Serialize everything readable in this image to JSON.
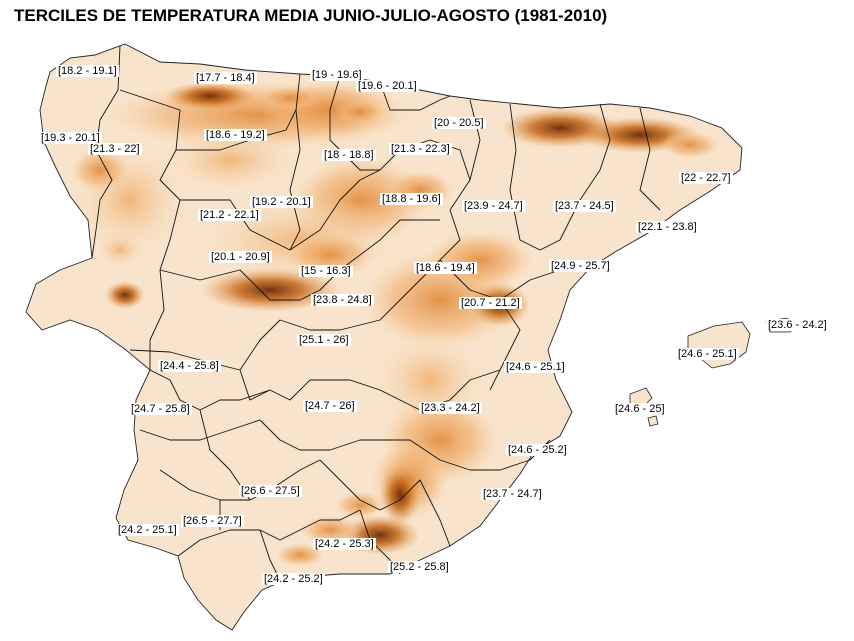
{
  "title": "TERCILES DE TEMPERATURA MEDIA JUNIO-JULIO-AGOSTO (1981-2010)",
  "colors": {
    "background": "#ffffff",
    "land_light": "#f8e4cc",
    "land_mid": "#f0b878",
    "land_warm": "#e69848",
    "land_hot": "#b0500c",
    "land_peak": "#5a2004",
    "borders": "#111111"
  },
  "regions": [
    {
      "id": "galicia-west",
      "label": "[18.2 - 19.1]"
    },
    {
      "id": "cantabria",
      "label": "[17.7 - 18.4]"
    },
    {
      "id": "bizkaia",
      "label": "[19 - 19.6]"
    },
    {
      "id": "gipuzkoa",
      "label": "[19.6 - 20.1]"
    },
    {
      "id": "galicia-coast",
      "label": "[19.3 - 20.1]"
    },
    {
      "id": "galicia-interior",
      "label": "[21.3 - 22]"
    },
    {
      "id": "burgos-leon",
      "label": "[18.6 - 19.2]"
    },
    {
      "id": "navarra",
      "label": "[20 - 20.5]"
    },
    {
      "id": "la-rioja",
      "label": "[21.3 - 22.3]"
    },
    {
      "id": "soria-burgos",
      "label": "[18 - 18.8]"
    },
    {
      "id": "girona",
      "label": "[22 - 22.7]"
    },
    {
      "id": "valladolid",
      "label": "[19.2 - 20.1]"
    },
    {
      "id": "soria",
      "label": "[18.8 - 19.6]"
    },
    {
      "id": "zaragoza",
      "label": "[23.9 - 24.7]"
    },
    {
      "id": "lleida",
      "label": "[23.7 - 24.5]"
    },
    {
      "id": "zamora",
      "label": "[21.2 - 22.1]"
    },
    {
      "id": "barcelona-tarragona",
      "label": "[22.1 - 23.8]"
    },
    {
      "id": "salamanca",
      "label": "[20.1 - 20.9]"
    },
    {
      "id": "avila-segovia",
      "label": "[15 - 16.3]"
    },
    {
      "id": "teruel",
      "label": "[18.6 - 19.4]"
    },
    {
      "id": "castellon",
      "label": "[24.9 - 25.7]"
    },
    {
      "id": "madrid",
      "label": "[23.8 - 24.8]"
    },
    {
      "id": "cuenca",
      "label": "[20.7 - 21.2]"
    },
    {
      "id": "mallorca-menorca",
      "label": "[23.6 - 24.2]"
    },
    {
      "id": "toledo",
      "label": "[25.1 - 26]"
    },
    {
      "id": "mallorca",
      "label": "[24.6 - 25.1]"
    },
    {
      "id": "caceres",
      "label": "[24.4 - 25.8]"
    },
    {
      "id": "valencia",
      "label": "[24.6 - 25.1]"
    },
    {
      "id": "badajoz",
      "label": "[24.7 - 25.8]"
    },
    {
      "id": "ciudad-real",
      "label": "[24.7 - 26]"
    },
    {
      "id": "albacete",
      "label": "[23.3 - 24.2]"
    },
    {
      "id": "ibiza",
      "label": "[24.6 - 25]"
    },
    {
      "id": "alicante",
      "label": "[24.6 - 25.2]"
    },
    {
      "id": "cordoba-jaen",
      "label": "[26.6 - 27.5]"
    },
    {
      "id": "murcia",
      "label": "[23.7 - 24.7]"
    },
    {
      "id": "sevilla",
      "label": "[26.5 - 27.7]"
    },
    {
      "id": "huelva",
      "label": "[24.2 - 25.1]"
    },
    {
      "id": "granada",
      "label": "[24.2 - 25.3]"
    },
    {
      "id": "almeria",
      "label": "[25.2 - 25.8]"
    },
    {
      "id": "malaga-cadiz",
      "label": "[24.2 - 25.2]"
    }
  ]
}
